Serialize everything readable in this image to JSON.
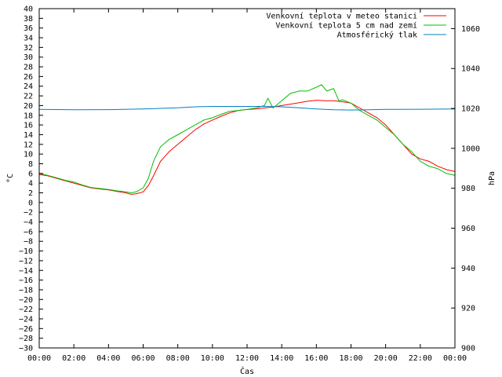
{
  "chart_data": {
    "type": "line",
    "xlabel": "Čas",
    "ylabel": "°C",
    "y2label": "hPa",
    "x_unit": "hours",
    "xlim": [
      0,
      24
    ],
    "ylim": [
      -30,
      40
    ],
    "y2lim": [
      900,
      1070
    ],
    "x_ticks": [
      {
        "x": 0,
        "label": "00:00"
      },
      {
        "x": 2,
        "label": "02:00"
      },
      {
        "x": 4,
        "label": "04:00"
      },
      {
        "x": 6,
        "label": "06:00"
      },
      {
        "x": 8,
        "label": "08:00"
      },
      {
        "x": 10,
        "label": "10:00"
      },
      {
        "x": 12,
        "label": "12:00"
      },
      {
        "x": 14,
        "label": "14:00"
      },
      {
        "x": 16,
        "label": "16:00"
      },
      {
        "x": 18,
        "label": "18:00"
      },
      {
        "x": 20,
        "label": "20:00"
      },
      {
        "x": 22,
        "label": "22:00"
      },
      {
        "x": 24,
        "label": "00:00"
      }
    ],
    "y_ticks": [
      40,
      38,
      36,
      34,
      32,
      30,
      28,
      26,
      24,
      22,
      20,
      18,
      16,
      14,
      12,
      10,
      8,
      6,
      4,
      2,
      0,
      -2,
      -4,
      -6,
      -8,
      -10,
      -12,
      -14,
      -16,
      -18,
      -20,
      -22,
      -24,
      -26,
      -28,
      -30
    ],
    "y2_ticks": [
      1060,
      1040,
      1020,
      1000,
      980,
      960,
      940,
      920,
      900
    ],
    "grid": false,
    "legend_position": "top-right",
    "series": [
      {
        "name": "Venkovní teplota v meteo stanici",
        "color": "#ff0000",
        "axis": "y",
        "x": [
          0,
          0.5,
          1,
          1.5,
          2,
          2.5,
          3,
          3.5,
          4,
          4.5,
          5,
          5.3,
          5.6,
          6,
          6.3,
          6.6,
          7,
          7.5,
          8,
          8.5,
          9,
          9.5,
          10,
          10.5,
          11,
          11.5,
          12,
          12.5,
          13,
          13.5,
          14,
          14.5,
          15,
          15.5,
          16,
          16.5,
          17,
          17.5,
          18,
          18.5,
          19,
          19.5,
          20,
          20.5,
          21,
          21.5,
          22,
          22.5,
          23,
          23.5,
          24
        ],
        "values": [
          5.8,
          5.5,
          5.0,
          4.5,
          4.0,
          3.5,
          3.0,
          2.8,
          2.6,
          2.3,
          2.0,
          1.7,
          1.8,
          2.2,
          3.5,
          5.5,
          8.5,
          10.5,
          12.0,
          13.5,
          15.0,
          16.2,
          17.0,
          17.8,
          18.5,
          19.0,
          19.2,
          19.3,
          19.5,
          19.7,
          20.0,
          20.3,
          20.6,
          20.9,
          21.1,
          21.0,
          21.0,
          20.8,
          20.5,
          19.5,
          18.5,
          17.5,
          16.0,
          14.0,
          12.0,
          10.0,
          9.0,
          8.5,
          7.5,
          6.8,
          6.4
        ]
      },
      {
        "name": "Venkovní teplota 5 cm nad zemí",
        "color": "#00c000",
        "axis": "y",
        "x": [
          0,
          0.5,
          1,
          1.5,
          2,
          2.5,
          3,
          3.5,
          4,
          4.5,
          5,
          5.3,
          5.6,
          6,
          6.3,
          6.6,
          7,
          7.5,
          8,
          8.5,
          9,
          9.5,
          10,
          10.5,
          11,
          11.5,
          12,
          12.5,
          13,
          13.2,
          13.5,
          14,
          14.5,
          15,
          15.5,
          16,
          16.3,
          16.6,
          17,
          17.3,
          17.5,
          18,
          18.5,
          19,
          19.5,
          20,
          20.5,
          21,
          21.5,
          22,
          22.5,
          23,
          23.5,
          24
        ],
        "values": [
          6.0,
          5.6,
          5.1,
          4.6,
          4.2,
          3.6,
          3.1,
          2.9,
          2.7,
          2.4,
          2.2,
          2.0,
          2.2,
          3.0,
          5.0,
          8.5,
          11.5,
          13.0,
          14.0,
          15.0,
          16.0,
          17.0,
          17.5,
          18.2,
          18.8,
          19.0,
          19.2,
          19.5,
          20.0,
          21.5,
          19.5,
          21.0,
          22.5,
          23.0,
          23.0,
          23.8,
          24.3,
          23.0,
          23.5,
          21.0,
          21.2,
          20.5,
          19.0,
          18.0,
          17.0,
          15.5,
          14.0,
          12.0,
          10.5,
          8.5,
          7.5,
          7.0,
          6.0,
          5.6
        ]
      },
      {
        "name": "Atmosférický tlak",
        "color": "#0080c0",
        "axis": "y2",
        "x": [
          0,
          2,
          4,
          6,
          8,
          9,
          10,
          11,
          12,
          13,
          14,
          15,
          16,
          17,
          18,
          19,
          20,
          22,
          24
        ],
        "values": [
          1019.5,
          1019.3,
          1019.4,
          1019.7,
          1020.3,
          1020.8,
          1021.0,
          1021.0,
          1021.0,
          1021.0,
          1020.8,
          1020.3,
          1019.7,
          1019.3,
          1019.2,
          1019.3,
          1019.5,
          1019.6,
          1019.7
        ]
      }
    ]
  }
}
